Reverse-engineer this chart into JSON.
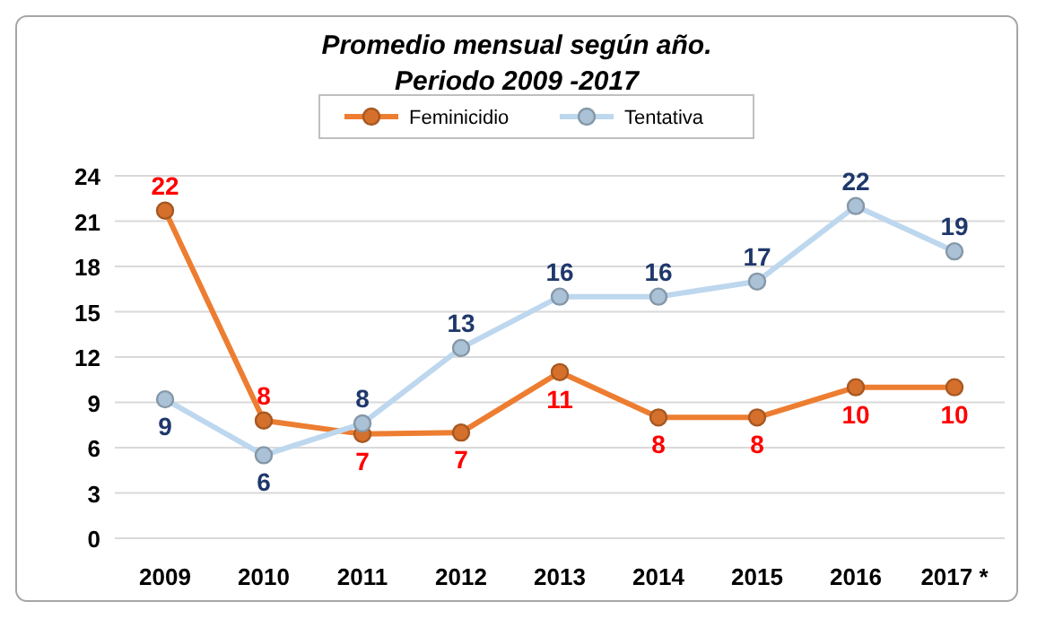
{
  "chart_data": {
    "type": "line",
    "title": "Promedio mensual según año.\nPeriodo 2009 -2017",
    "categories": [
      "2009",
      "2010",
      "2011",
      "2012",
      "2013",
      "2014",
      "2015",
      "2016",
      "2017 *"
    ],
    "series": [
      {
        "name": "Feminicidio",
        "color": "#ed7d31",
        "values": [
          21.7,
          7.8,
          6.9,
          7.0,
          11.0,
          8.0,
          8.0,
          10.0,
          10.0
        ],
        "value_labels": [
          "22",
          "8",
          "7",
          "7",
          "11",
          "8",
          "8",
          "10",
          "10"
        ]
      },
      {
        "name": "Tentativa",
        "color": "#bdd7ee",
        "values": [
          9.2,
          5.5,
          7.6,
          12.6,
          16.0,
          16.0,
          17.0,
          22.0,
          19.0
        ],
        "value_labels": [
          "9",
          "6",
          "8",
          "13",
          "16",
          "16",
          "17",
          "22",
          "19"
        ]
      }
    ],
    "ylim": [
      0,
      24
    ],
    "yticks": [
      0,
      3,
      6,
      9,
      12,
      15,
      18,
      21,
      24
    ],
    "grid": "y",
    "legend": "top",
    "marker": "circle"
  }
}
